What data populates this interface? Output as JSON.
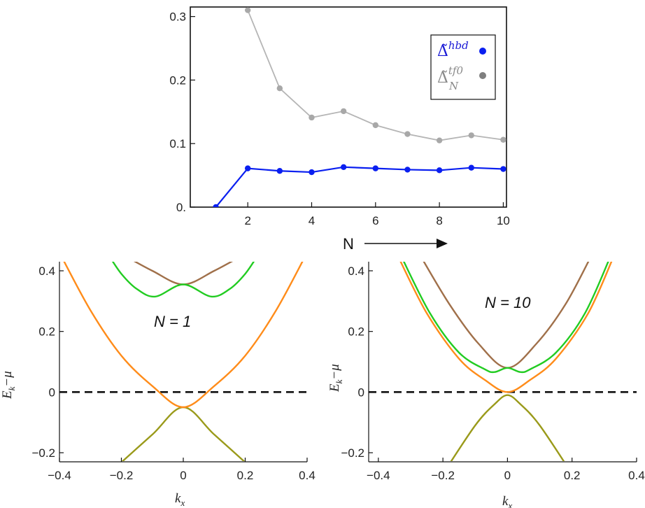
{
  "chart_data": [
    {
      "type": "line",
      "id": "top",
      "xticks": [
        2,
        4,
        6,
        8,
        10
      ],
      "yticks": [
        0.0,
        0.1,
        0.2,
        0.3
      ],
      "ytick_labels": [
        "0.",
        "0.1",
        "0.2",
        "0.3"
      ],
      "xlim": [
        0.2,
        10.1
      ],
      "ylim": [
        0.0,
        0.315
      ],
      "series": [
        {
          "name": "Δ̃hbd",
          "color": "#0a1ff0",
          "x": [
            1,
            2,
            3,
            4,
            5,
            6,
            7,
            8,
            9,
            10
          ],
          "y": [
            0.0,
            0.061,
            0.057,
            0.055,
            0.063,
            0.061,
            0.059,
            0.058,
            0.062,
            0.06
          ]
        },
        {
          "name": "Δ̃Ntf0",
          "color": "#b5b5b5",
          "marker_color": "#a8a8a8",
          "x": [
            2,
            3,
            4,
            5,
            6,
            7,
            8,
            9,
            10
          ],
          "y": [
            0.31,
            0.187,
            0.141,
            0.151,
            0.129,
            0.115,
            0.105,
            0.113,
            0.106
          ]
        }
      ],
      "legend": {
        "placement": "top-right",
        "items": [
          {
            "base": "Δ̃",
            "sup": "hbd",
            "sub": "",
            "color": "#1b1bd6",
            "marker": "#0a1ff0"
          },
          {
            "base": "Δ̃",
            "sup": "tf0",
            "sub": "N",
            "color": "#8a8a8a",
            "marker": "#7f7f7f"
          }
        ]
      },
      "xlabel": "N"
    },
    {
      "type": "line",
      "id": "bottom-left",
      "annotation": "N = 1",
      "xlabel": "k",
      "xlabel_sub": "x",
      "ylabel": "E",
      "ylabel_sub": "k",
      "ylabel_tail": "−μ",
      "xticks": [
        -0.4,
        -0.2,
        0,
        0.2,
        0.4
      ],
      "xtick_labels": [
        "−0.4",
        "−0.2",
        "0",
        "0.2",
        "0.4"
      ],
      "yticks": [
        -0.2,
        0,
        0.2,
        0.4
      ],
      "ytick_labels": [
        "−0.2",
        "0",
        "0.2",
        "0.4"
      ],
      "xlim": [
        -0.4,
        0.4
      ],
      "ylim": [
        -0.23,
        0.43
      ],
      "zero_line": "dashed",
      "bands": {
        "orange": [
          [
            -0.4,
            0.46
          ],
          [
            -0.3,
            0.27
          ],
          [
            -0.2,
            0.12
          ],
          [
            -0.1,
            0.02
          ],
          [
            0.0,
            -0.05
          ],
          [
            0.1,
            0.02
          ],
          [
            0.2,
            0.12
          ],
          [
            0.3,
            0.27
          ],
          [
            0.4,
            0.46
          ]
        ],
        "green": [
          [
            -0.24,
            0.45
          ],
          [
            -0.2,
            0.39
          ],
          [
            -0.15,
            0.34
          ],
          [
            -0.09,
            0.315
          ],
          [
            0.0,
            0.355
          ],
          [
            0.09,
            0.315
          ],
          [
            0.15,
            0.34
          ],
          [
            0.2,
            0.39
          ],
          [
            0.24,
            0.45
          ]
        ],
        "brown": [
          [
            -0.19,
            0.45
          ],
          [
            -0.1,
            0.4
          ],
          [
            0.0,
            0.355
          ],
          [
            0.1,
            0.4
          ],
          [
            0.19,
            0.45
          ]
        ],
        "olive": [
          [
            -0.22,
            -0.25
          ],
          [
            -0.1,
            -0.14
          ],
          [
            0.0,
            -0.05
          ],
          [
            0.1,
            -0.14
          ],
          [
            0.22,
            -0.25
          ]
        ]
      }
    },
    {
      "type": "line",
      "id": "bottom-right",
      "annotation": "N = 10",
      "xlabel": "k",
      "xlabel_sub": "x",
      "ylabel": "E",
      "ylabel_sub": "k",
      "ylabel_tail": "−μ",
      "xticks": [
        -0.4,
        -0.2,
        0,
        0.2,
        0.4
      ],
      "xtick_labels": [
        "−0.4",
        "−0.2",
        "0",
        "0.2",
        "0.4"
      ],
      "yticks": [
        -0.2,
        0,
        0.2,
        0.4
      ],
      "ytick_labels": [
        "−0.2",
        "0",
        "0.2",
        "0.4"
      ],
      "xlim": [
        -0.43,
        0.4
      ],
      "ylim": [
        -0.23,
        0.43
      ],
      "zero_line": "dashed",
      "bands": {
        "orange": [
          [
            -0.34,
            0.45
          ],
          [
            -0.25,
            0.26
          ],
          [
            -0.15,
            0.11
          ],
          [
            -0.07,
            0.04
          ],
          [
            0.0,
            0.0
          ],
          [
            0.07,
            0.04
          ],
          [
            0.15,
            0.11
          ],
          [
            0.25,
            0.26
          ],
          [
            0.33,
            0.45
          ]
        ],
        "green": [
          [
            -0.33,
            0.45
          ],
          [
            -0.24,
            0.26
          ],
          [
            -0.15,
            0.13
          ],
          [
            -0.07,
            0.075
          ],
          [
            -0.04,
            0.066
          ],
          [
            0.0,
            0.08
          ],
          [
            0.04,
            0.066
          ],
          [
            0.07,
            0.075
          ],
          [
            0.15,
            0.13
          ],
          [
            0.24,
            0.26
          ],
          [
            0.32,
            0.45
          ]
        ],
        "brown": [
          [
            -0.27,
            0.45
          ],
          [
            -0.18,
            0.29
          ],
          [
            -0.09,
            0.16
          ],
          [
            0.0,
            0.08
          ],
          [
            0.09,
            0.16
          ],
          [
            0.18,
            0.29
          ],
          [
            0.26,
            0.45
          ]
        ],
        "olive": [
          [
            -0.2,
            -0.27
          ],
          [
            -0.1,
            -0.11
          ],
          [
            -0.04,
            -0.04
          ],
          [
            0.0,
            -0.01
          ],
          [
            0.04,
            -0.04
          ],
          [
            0.1,
            -0.11
          ],
          [
            0.2,
            -0.27
          ]
        ]
      }
    }
  ],
  "colors": {
    "orange": "#ff8c1a",
    "green": "#22cc22",
    "brown": "#a0704a",
    "olive": "#9a9a1a"
  }
}
